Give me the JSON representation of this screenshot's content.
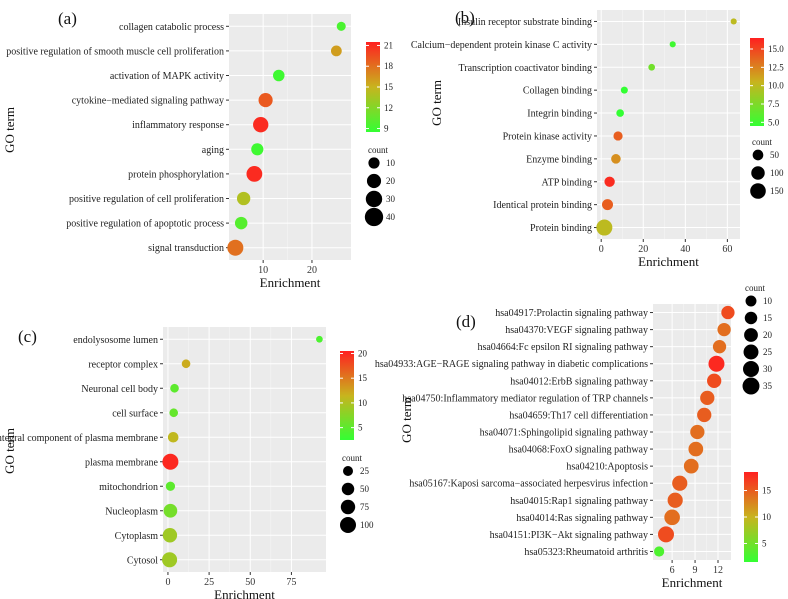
{
  "chart_data": [
    {
      "panel_label": "(a)",
      "type": "scatter",
      "title": "",
      "xlabel": "Enrichment",
      "ylabel": "GO term",
      "xlim": [
        3,
        28
      ],
      "xticks": [
        10,
        20
      ],
      "terms": [
        "collagen catabolic process",
        "positive regulation of smooth muscle cell proliferation",
        "activation of MAPK activity",
        "cytokine−mediated signaling pathway",
        "inflammatory response",
        "aging",
        "protein phosphorylation",
        "positive regulation of cell proliferation",
        "positive regulation of apoptotic process",
        "signal transduction"
      ],
      "enrichment": [
        26.0,
        25.0,
        13.2,
        10.5,
        9.5,
        8.8,
        8.2,
        6.0,
        5.5,
        4.3
      ],
      "count": [
        5,
        9,
        11,
        20,
        25,
        13,
        27,
        17,
        14,
        28
      ],
      "color_value": [
        9.5,
        16,
        9,
        19,
        21,
        9,
        21,
        14,
        10,
        18
      ],
      "color_legend": {
        "min": 8.5,
        "max": 21.5,
        "ticks": [
          9,
          12,
          15,
          18,
          21
        ],
        "low_color": "#33ff33",
        "high_color": "#ff2020"
      },
      "size_legend": {
        "title": "count",
        "values": [
          10,
          20,
          30,
          40
        ]
      }
    },
    {
      "panel_label": "(b)",
      "type": "scatter",
      "title": "",
      "xlabel": "Enrichment",
      "ylabel": "GO term",
      "xlim": [
        -2,
        66
      ],
      "xticks": [
        0,
        20,
        40,
        60
      ],
      "terms": [
        "Insulin receptor substrate binding",
        "Calcium−dependent protein kinase C activity",
        "Transcription coactivator binding",
        "Collagen binding",
        "Integrin binding",
        "Protein kinase activity",
        "Enzyme binding",
        "ATP binding",
        "Identical protein binding",
        "Protein binding"
      ],
      "enrichment": [
        63,
        34,
        24,
        11,
        9,
        8,
        7,
        4,
        3,
        1.5
      ],
      "count": [
        5,
        5,
        8,
        10,
        15,
        30,
        35,
        45,
        55,
        160
      ],
      "color_value": [
        10,
        5,
        7,
        4,
        4.5,
        14,
        12,
        16,
        14,
        10
      ],
      "color_legend": {
        "min": 4.5,
        "max": 16.5,
        "ticks": [
          5.0,
          7.5,
          10.0,
          12.5,
          15.0
        ],
        "low_color": "#33ff33",
        "high_color": "#ff2020"
      },
      "size_legend": {
        "title": "count",
        "values": [
          50,
          100,
          150
        ]
      }
    },
    {
      "panel_label": "(c)",
      "type": "scatter",
      "title": "",
      "xlabel": "Enrichment",
      "ylabel": "GO term",
      "xlim": [
        -3,
        96
      ],
      "xticks": [
        0,
        25,
        50,
        75
      ],
      "terms": [
        "endolysosome lumen",
        "receptor complex",
        "Neuronal cell body",
        "cell surface",
        "integral component of plasma membrane",
        "plasma membrane",
        "mitochondrion",
        "Nucleoplasm",
        "Cytoplasm",
        "Cytosol"
      ],
      "enrichment": [
        92,
        11,
        4,
        3.5,
        3.2,
        1.5,
        1.5,
        1.5,
        1.2,
        1.0
      ],
      "count": [
        5,
        15,
        15,
        15,
        30,
        100,
        20,
        65,
        75,
        85
      ],
      "color_value": [
        4,
        12,
        5,
        5.5,
        11,
        20,
        5,
        6.5,
        9,
        9
      ],
      "color_legend": {
        "min": 2.5,
        "max": 20.5,
        "ticks": [
          5,
          10,
          15,
          20
        ],
        "low_color": "#33ff33",
        "high_color": "#ff2020"
      },
      "size_legend": {
        "title": "count",
        "values": [
          25,
          50,
          75,
          100
        ]
      }
    },
    {
      "panel_label": "(d)",
      "type": "scatter",
      "title": "",
      "xlabel": "Enrichment",
      "ylabel": "GO term",
      "xlim": [
        3.5,
        13.7
      ],
      "xticks": [
        6,
        9,
        12
      ],
      "terms": [
        "hsa04917:Prolactin signaling pathway",
        "hsa04370:VEGF signaling pathway",
        "hsa04664:Fc epsilon RI signaling pathway",
        "hsa04933:AGE−RAGE signaling pathway in diabetic complications",
        "hsa04012:ErbB signaling pathway",
        "hsa04750:Inflammatory mediator regulation of TRP channels",
        "hsa04659:Th17 cell differentiation",
        "hsa04071:Sphingolipid signaling pathway",
        "hsa04068:FoxO signaling pathway",
        "hsa04210:Apoptosis",
        "hsa05167:Kaposi sarcoma−associated herpesvirus infection",
        "hsa04015:Rap1 signaling pathway",
        "hsa04014:Ras signaling pathway",
        "hsa04151:PI3K−Akt signaling pathway",
        "hsa05323:Rheumatoid arthritis"
      ],
      "enrichment": [
        13.3,
        12.8,
        12.2,
        11.8,
        11.5,
        10.6,
        10.2,
        9.3,
        9.1,
        8.5,
        7.0,
        6.4,
        6.0,
        5.2,
        4.3
      ],
      "count": [
        18,
        18,
        18,
        30,
        22,
        22,
        22,
        22,
        24,
        24,
        26,
        26,
        28,
        30,
        8
      ],
      "color_value": [
        16,
        14,
        14,
        18,
        16,
        15,
        15,
        14,
        14,
        14,
        15,
        15,
        14,
        16,
        3
      ],
      "color_legend": {
        "min": 1.5,
        "max": 18.5,
        "ticks": [
          5,
          10,
          15
        ],
        "low_color": "#33ff33",
        "high_color": "#ff2020"
      },
      "size_legend": {
        "title": "count",
        "values": [
          10,
          15,
          20,
          25,
          30,
          35
        ]
      }
    }
  ]
}
